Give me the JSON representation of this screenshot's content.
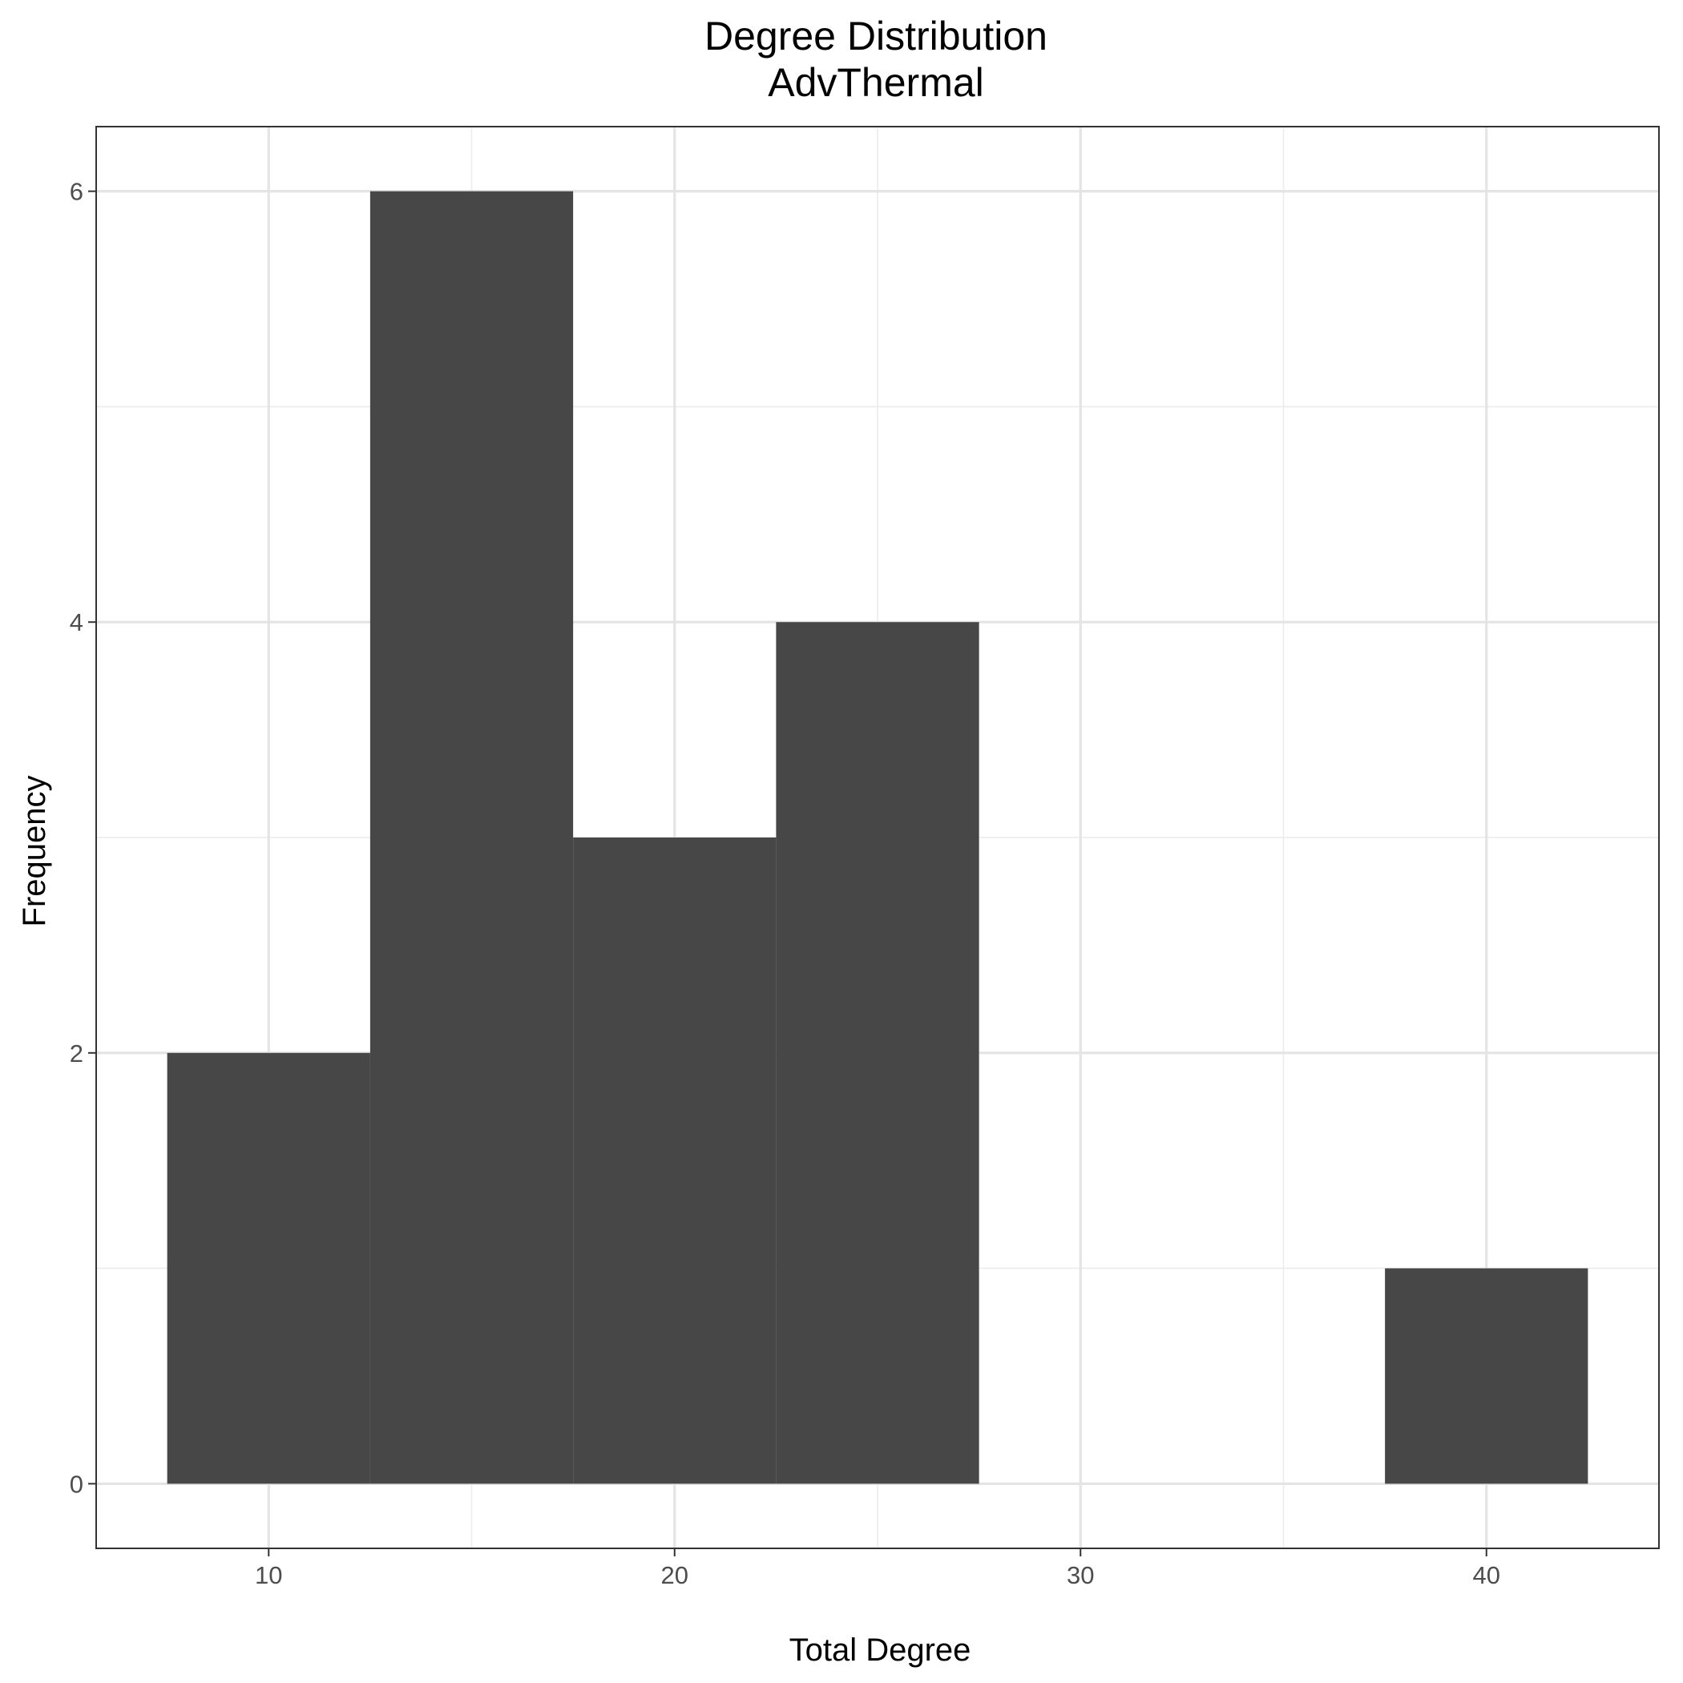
{
  "chart_data": {
    "type": "bar",
    "title": "Degree Distribution",
    "subtitle": "AdvThermal",
    "xlabel": "Total Degree",
    "ylabel": "Frequency",
    "xlim": [
      5.75,
      44.25
    ],
    "ylim": [
      -0.3,
      6.3
    ],
    "x_ticks": [
      10,
      20,
      30,
      40
    ],
    "x_minor_ticks": [
      15,
      25,
      35
    ],
    "y_ticks": [
      0,
      2,
      4,
      6
    ],
    "y_minor_ticks": [
      1,
      3,
      5
    ],
    "bin_width": 5,
    "bins": [
      {
        "x0": 7.5,
        "x1": 12.5,
        "count": 2
      },
      {
        "x0": 12.5,
        "x1": 17.5,
        "count": 6
      },
      {
        "x0": 17.5,
        "x1": 22.5,
        "count": 3
      },
      {
        "x0": 22.5,
        "x1": 27.5,
        "count": 4
      },
      {
        "x0": 27.5,
        "x1": 32.5,
        "count": 0
      },
      {
        "x0": 32.5,
        "x1": 37.5,
        "count": 0
      },
      {
        "x0": 37.5,
        "x1": 42.5,
        "count": 1
      }
    ],
    "bar_color": "#474747",
    "grid": true,
    "legend": "none"
  }
}
